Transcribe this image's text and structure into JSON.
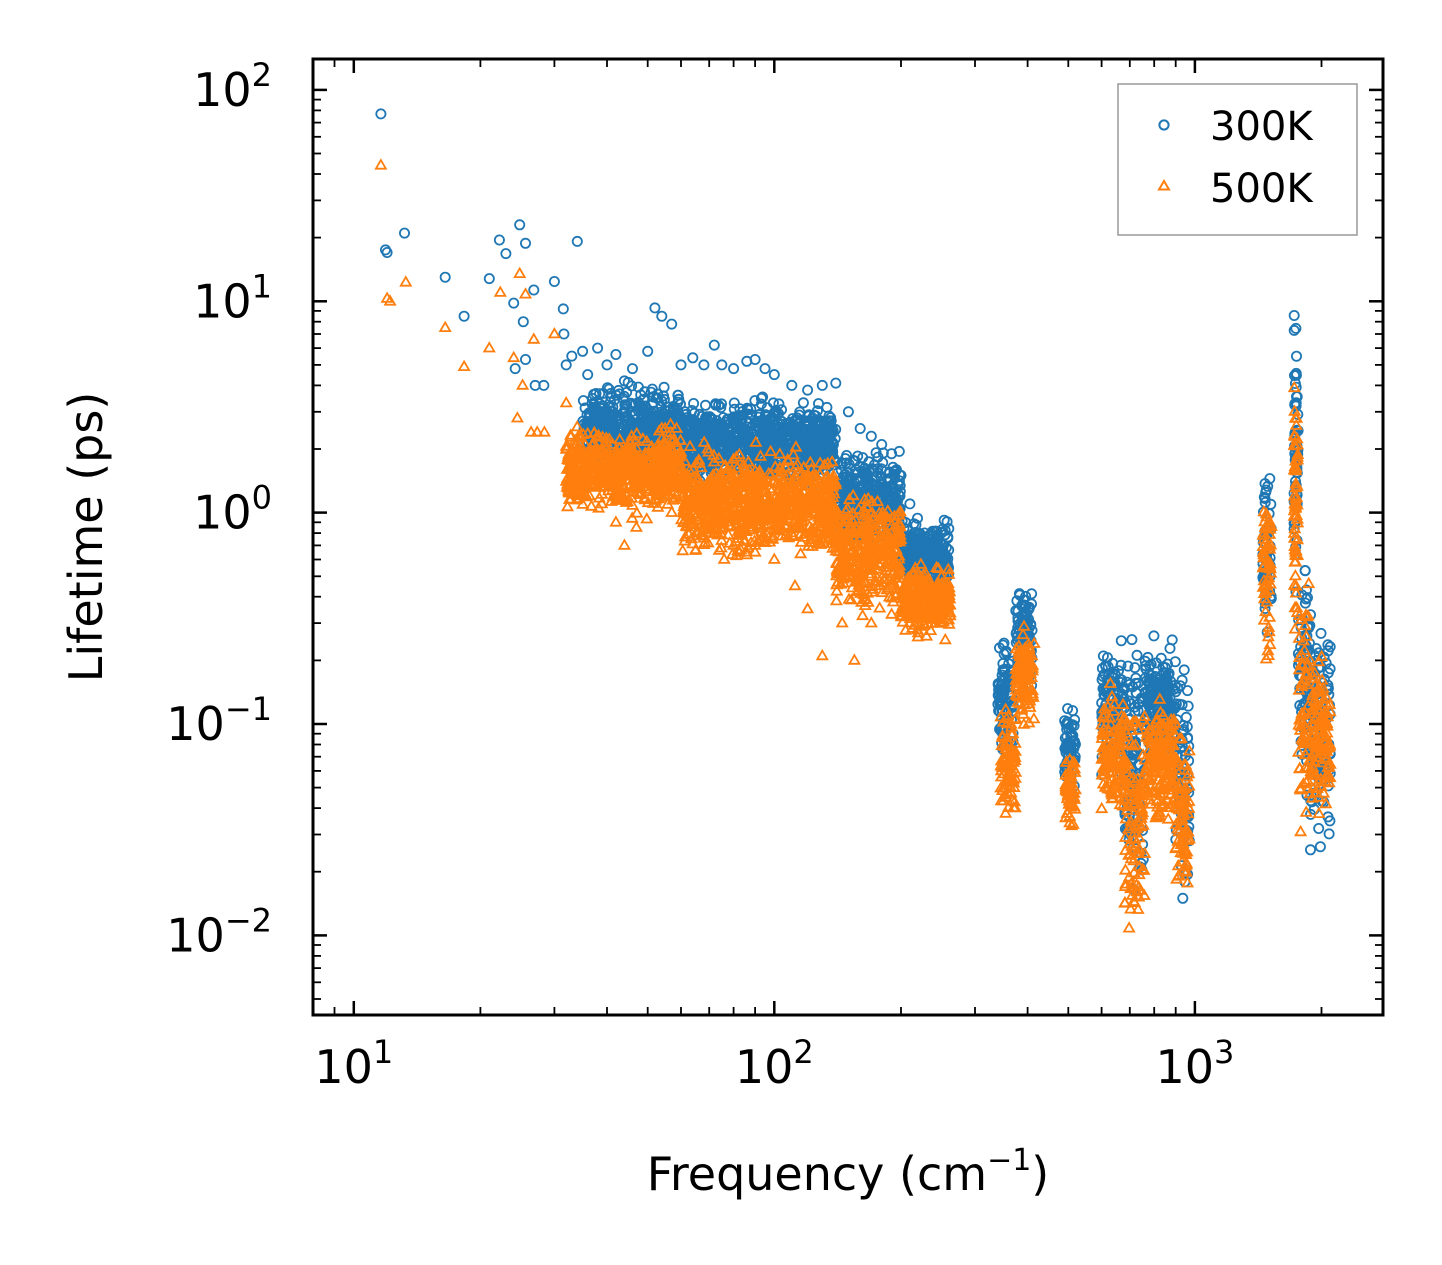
{
  "chart_data": {
    "type": "scatter",
    "xscale": "log",
    "yscale": "log",
    "xlabel": "Frequency (cm",
    "xlabel_sup": "−1",
    "xlabel_end": ")",
    "ylabel": "Lifetime (ps)",
    "xlim": [
      8.0,
      2800
    ],
    "ylim": [
      0.0042,
      140
    ],
    "xticks": [
      {
        "value": 10,
        "base": "10",
        "exp": "1"
      },
      {
        "value": 100,
        "base": "10",
        "exp": "2"
      },
      {
        "value": 1000,
        "base": "10",
        "exp": "3"
      }
    ],
    "yticks": [
      {
        "value": 0.01,
        "base": "10",
        "exp": "−2"
      },
      {
        "value": 0.1,
        "base": "10",
        "exp": "−1"
      },
      {
        "value": 1,
        "base": "10",
        "exp": "0"
      },
      {
        "value": 10,
        "base": "10",
        "exp": "1"
      },
      {
        "value": 100,
        "base": "10",
        "exp": "2"
      }
    ],
    "legend_position": "top-right",
    "series": [
      {
        "name": "300K",
        "color": "#1f77b4",
        "marker": "circle",
        "points": [
          [
            11.6,
            77
          ],
          [
            11.9,
            17.5
          ],
          [
            12.0,
            17
          ],
          [
            13.2,
            21
          ],
          [
            16.5,
            13
          ],
          [
            18.3,
            8.5
          ],
          [
            21.0,
            12.8
          ],
          [
            22.2,
            19.5
          ],
          [
            23.0,
            16.8
          ],
          [
            24.0,
            9.8
          ],
          [
            24.2,
            4.8
          ],
          [
            24.8,
            23
          ],
          [
            25.3,
            8.0
          ],
          [
            25.6,
            18.8
          ],
          [
            25.6,
            5.3
          ],
          [
            26.8,
            11.3
          ],
          [
            27.0,
            4.0
          ],
          [
            28.3,
            4.0
          ],
          [
            30.0,
            12.4
          ],
          [
            31.5,
            9.2
          ],
          [
            31.6,
            7.0
          ],
          [
            32.0,
            5.0
          ],
          [
            33.0,
            5.5
          ],
          [
            34.0,
            19.2
          ],
          [
            35.0,
            5.8
          ],
          [
            36.0,
            4.5
          ],
          [
            38.0,
            6.0
          ],
          [
            40.0,
            5.0
          ],
          [
            42.0,
            5.6
          ],
          [
            44.0,
            4.2
          ],
          [
            46.0,
            4.8
          ],
          [
            50.0,
            5.8
          ],
          [
            52.0,
            9.3
          ],
          [
            54.0,
            8.5
          ],
          [
            57.0,
            7.8
          ],
          [
            60.0,
            5.0
          ],
          [
            64.0,
            5.4
          ],
          [
            68.0,
            5.0
          ],
          [
            72.0,
            6.2
          ],
          [
            75.0,
            5.0
          ],
          [
            80.0,
            4.8
          ],
          [
            86.0,
            5.2
          ],
          [
            90.0,
            5.3
          ],
          [
            95.0,
            4.8
          ],
          [
            100.0,
            4.5
          ],
          [
            110.0,
            4.0
          ],
          [
            120.0,
            3.8
          ],
          [
            130.0,
            4.0
          ],
          [
            140.0,
            4.1
          ],
          [
            150.0,
            3.0
          ],
          [
            160.0,
            2.5
          ],
          [
            170.0,
            2.3
          ],
          [
            180.0,
            2.1
          ],
          [
            190.0,
            1.9
          ],
          [
            200.0,
            1.5
          ],
          [
            210.0,
            1.1
          ],
          [
            220.0,
            0.8
          ],
          [
            230.0,
            0.65
          ],
          [
            245.0,
            0.55
          ],
          [
            258.0,
            0.5
          ]
        ],
        "bands": [
          [
            35,
            60,
            1.3,
            4.5
          ],
          [
            60,
            140,
            1.2,
            3.8
          ],
          [
            140,
            200,
            0.6,
            2.2
          ],
          [
            200,
            260,
            0.4,
            1.0
          ],
          [
            340,
            370,
            0.06,
            0.3
          ],
          [
            375,
            410,
            0.12,
            0.6
          ],
          [
            490,
            520,
            0.04,
            0.15
          ],
          [
            600,
            680,
            0.04,
            0.3
          ],
          [
            680,
            760,
            0.012,
            0.35
          ],
          [
            760,
            840,
            0.05,
            0.3
          ],
          [
            840,
            900,
            0.05,
            0.28
          ],
          [
            900,
            970,
            0.012,
            0.3
          ],
          [
            1450,
            1520,
            0.2,
            2.2
          ],
          [
            1720,
            1760,
            0.3,
            11
          ],
          [
            1760,
            1880,
            0.03,
            1.2
          ],
          [
            1880,
            2100,
            0.02,
            0.4
          ]
        ]
      },
      {
        "name": "500K",
        "color": "#ff7f0e",
        "marker": "triangle",
        "points": [
          [
            11.6,
            44
          ],
          [
            12.0,
            10.3
          ],
          [
            12.2,
            10.0
          ],
          [
            13.3,
            12.3
          ],
          [
            16.5,
            7.5
          ],
          [
            18.3,
            4.9
          ],
          [
            21.0,
            6.0
          ],
          [
            22.3,
            11.0
          ],
          [
            24.0,
            5.4
          ],
          [
            24.5,
            2.8
          ],
          [
            24.8,
            13.5
          ],
          [
            25.2,
            4.0
          ],
          [
            25.6,
            10.8
          ],
          [
            26.4,
            2.4
          ],
          [
            26.8,
            6.6
          ],
          [
            27.3,
            2.4
          ],
          [
            28.4,
            2.4
          ],
          [
            30.0,
            7.0
          ],
          [
            32.0,
            3.3
          ],
          [
            33.5,
            1.5
          ],
          [
            34.2,
            2.3
          ],
          [
            35.5,
            1.6
          ],
          [
            37.0,
            1.8
          ],
          [
            40.0,
            1.4
          ],
          [
            42.0,
            0.9
          ],
          [
            44.0,
            0.7
          ],
          [
            47.0,
            0.85
          ],
          [
            52.0,
            1.6
          ],
          [
            57.0,
            1.0
          ],
          [
            61.0,
            0.9
          ],
          [
            65.0,
            1.1
          ],
          [
            70.0,
            0.8
          ],
          [
            76.0,
            0.6
          ],
          [
            80.0,
            0.7
          ],
          [
            86.0,
            0.65
          ],
          [
            90.0,
            0.7
          ],
          [
            100.0,
            0.6
          ],
          [
            112.0,
            0.45
          ],
          [
            120.0,
            0.35
          ],
          [
            130.0,
            0.21
          ],
          [
            145.0,
            0.3
          ],
          [
            155.0,
            0.2
          ],
          [
            170.0,
            0.3
          ],
          [
            190.0,
            0.33
          ],
          [
            210.0,
            0.3
          ],
          [
            230.0,
            0.26
          ],
          [
            255.0,
            0.25
          ]
        ],
        "bands": [
          [
            32,
            60,
            0.9,
            2.8
          ],
          [
            60,
            140,
            0.55,
            2.2
          ],
          [
            140,
            200,
            0.3,
            1.4
          ],
          [
            200,
            262,
            0.25,
            0.6
          ],
          [
            345,
            375,
            0.028,
            0.16
          ],
          [
            375,
            415,
            0.08,
            0.35
          ],
          [
            490,
            520,
            0.03,
            0.08
          ],
          [
            600,
            680,
            0.03,
            0.17
          ],
          [
            680,
            760,
            0.006,
            0.2
          ],
          [
            760,
            840,
            0.03,
            0.15
          ],
          [
            840,
            900,
            0.03,
            0.14
          ],
          [
            900,
            970,
            0.012,
            0.12
          ],
          [
            1450,
            1520,
            0.15,
            1.6
          ],
          [
            1720,
            1760,
            0.2,
            7.5
          ],
          [
            1760,
            1880,
            0.015,
            0.8
          ],
          [
            1880,
            2100,
            0.03,
            0.25
          ]
        ]
      }
    ]
  }
}
